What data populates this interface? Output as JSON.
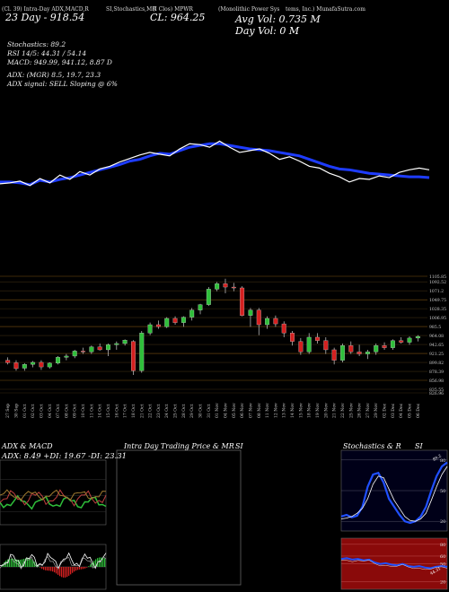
{
  "header": {
    "line1_left": "(Cl. 39) Intra-Day ADX,MACD,R",
    "line1_mid": "SI,Stochastics,MR",
    "line1_mid2": "(I Clos) MPWR",
    "line1_right": "(Monolithic Power Sys",
    "line1_right2": "tems, Inc.) MunafaSutra.com",
    "day_range": "23  Day - 918.54",
    "close": "CL: 964.25",
    "avg_vol": "Avg Vol: 0.735 M",
    "day_vol": "Day Vol: 0   M"
  },
  "indicators": {
    "stochastics": "Stochastics: 89.2",
    "rsi": "RSI 14/5: 44.31 / 54.14",
    "macd": "MACD: 949.99, 941.12, 8.87 D",
    "adx": "ADX:                              (MGR) 8.5, 19.7, 23.3",
    "adx_signal": "ADX  signal: SELL Sloping @ 6%"
  },
  "colors": {
    "up": "#2fbf3a",
    "down": "#d42020",
    "ma": "#1e3cff",
    "line": "#ffffff",
    "level": "#b07820"
  },
  "chart_data": [
    {
      "type": "line",
      "series": [
        {
          "values": [
            30,
            30,
            29,
            27,
            32,
            30,
            33,
            35,
            38,
            41,
            44,
            47,
            50,
            54,
            56,
            60,
            63,
            62,
            66,
            70,
            72,
            74,
            74,
            72,
            70,
            68,
            67,
            66,
            64,
            62,
            60,
            56,
            52,
            48,
            45,
            44,
            42,
            40,
            39,
            38,
            37,
            36,
            36,
            35
          ]
        },
        {
          "values": [
            28,
            29,
            31,
            26,
            34,
            29,
            38,
            33,
            42,
            38,
            45,
            48,
            53,
            57,
            61,
            64,
            62,
            60,
            68,
            74,
            73,
            70,
            77,
            70,
            64,
            66,
            68,
            63,
            56,
            59,
            54,
            48,
            46,
            40,
            36,
            30,
            34,
            33,
            37,
            35,
            41,
            44,
            46,
            44
          ]
        }
      ]
    },
    {
      "type": "candlestick",
      "y_ticks": [
        "1105.85",
        "1092.52",
        "1071.2",
        "1049.75",
        "1028.35",
        "1006.95",
        "985.5",
        "964.08",
        "942.65",
        "921.25",
        "899.82",
        "878.39",
        "856.98",
        "835.55",
        "826.96"
      ],
      "x_labels": [
        "27 Sep",
        "30 Sep",
        "01 Oct",
        "02 Oct",
        "03 Oct",
        "04 Oct",
        "07 Oct",
        "08 Oct",
        "09 Oct",
        "10 Oct",
        "11 Oct",
        "14 Oct",
        "15 Oct",
        "16 Oct",
        "17 Oct",
        "18 Oct",
        "21 Oct",
        "22 Oct",
        "23 Oct",
        "24 Oct",
        "25 Oct",
        "28 Oct",
        "29 Oct",
        "30 Oct",
        "31 Oct",
        "01 Nov",
        "04 Nov",
        "05 Nov",
        "06 Nov",
        "07 Nov",
        "08 Nov",
        "11 Nov",
        "12 Nov",
        "13 Nov",
        "14 Nov",
        "15 Nov",
        "18 Nov",
        "19 Nov",
        "20 Nov",
        "21 Nov",
        "22 Nov",
        "25 Nov",
        "26 Nov",
        "27 Nov",
        "29 Nov",
        "02 Dec",
        "03 Dec",
        "04 Dec",
        "05 Dec",
        "06 Dec"
      ],
      "candles": [
        [
          905,
          912,
          895,
          899
        ],
        [
          899,
          905,
          880,
          885
        ],
        [
          886,
          898,
          880,
          895
        ],
        [
          895,
          903,
          888,
          900
        ],
        [
          900,
          905,
          882,
          889
        ],
        [
          889,
          900,
          885,
          898
        ],
        [
          898,
          915,
          895,
          912
        ],
        [
          912,
          920,
          905,
          915
        ],
        [
          915,
          930,
          910,
          927
        ],
        [
          927,
          935,
          920,
          925
        ],
        [
          925,
          940,
          920,
          937
        ],
        [
          937,
          945,
          928,
          930
        ],
        [
          930,
          945,
          915,
          942
        ],
        [
          942,
          950,
          930,
          945
        ],
        [
          945,
          955,
          940,
          953
        ],
        [
          950,
          953,
          870,
          880
        ],
        [
          880,
          975,
          875,
          970
        ],
        [
          970,
          995,
          965,
          990
        ],
        [
          990,
          1000,
          980,
          985
        ],
        [
          985,
          1008,
          982,
          1005
        ],
        [
          1005,
          1010,
          990,
          995
        ],
        [
          995,
          1010,
          985,
          1008
        ],
        [
          1008,
          1030,
          1000,
          1025
        ],
        [
          1025,
          1040,
          1015,
          1038
        ],
        [
          1038,
          1080,
          1035,
          1075
        ],
        [
          1075,
          1092,
          1070,
          1088
        ],
        [
          1088,
          1100,
          1065,
          1080
        ],
        [
          1080,
          1090,
          1070,
          1078
        ],
        [
          1078,
          1082,
          1010,
          1012
        ],
        [
          1012,
          1030,
          985,
          1025
        ],
        [
          1025,
          1030,
          965,
          990
        ],
        [
          990,
          1010,
          980,
          1005
        ],
        [
          1005,
          1012,
          985,
          992
        ],
        [
          992,
          998,
          960,
          970
        ],
        [
          970,
          975,
          940,
          950
        ],
        [
          950,
          958,
          918,
          925
        ],
        [
          925,
          970,
          920,
          960
        ],
        [
          960,
          970,
          945,
          952
        ],
        [
          952,
          960,
          920,
          930
        ],
        [
          930,
          935,
          895,
          905
        ],
        [
          905,
          945,
          900,
          940
        ],
        [
          940,
          950,
          920,
          925
        ],
        [
          925,
          942,
          915,
          920
        ],
        [
          920,
          930,
          908,
          925
        ],
        [
          925,
          945,
          918,
          940
        ],
        [
          940,
          948,
          930,
          935
        ],
        [
          935,
          955,
          930,
          952
        ],
        [
          952,
          960,
          945,
          948
        ],
        [
          948,
          962,
          942,
          958
        ],
        [
          958,
          965,
          950,
          962
        ]
      ]
    }
  ],
  "panels": {
    "adx_title": "ADX: 8.49  +DI: 19.67  -DI: 23.31",
    "adx_label": "ADX & MACD",
    "intra_label": "Intra Day Trading Price & MR",
    "intra_si": "SI",
    "stoch_label": "Stochastics & R",
    "stoch_si": "SI",
    "stoch_ticks": [
      "80",
      "50",
      "20"
    ],
    "rsi_ticks": [
      "80",
      "60",
      "50",
      "20"
    ],
    "stoch_value": "89.2",
    "rsi_value": "44.31"
  }
}
